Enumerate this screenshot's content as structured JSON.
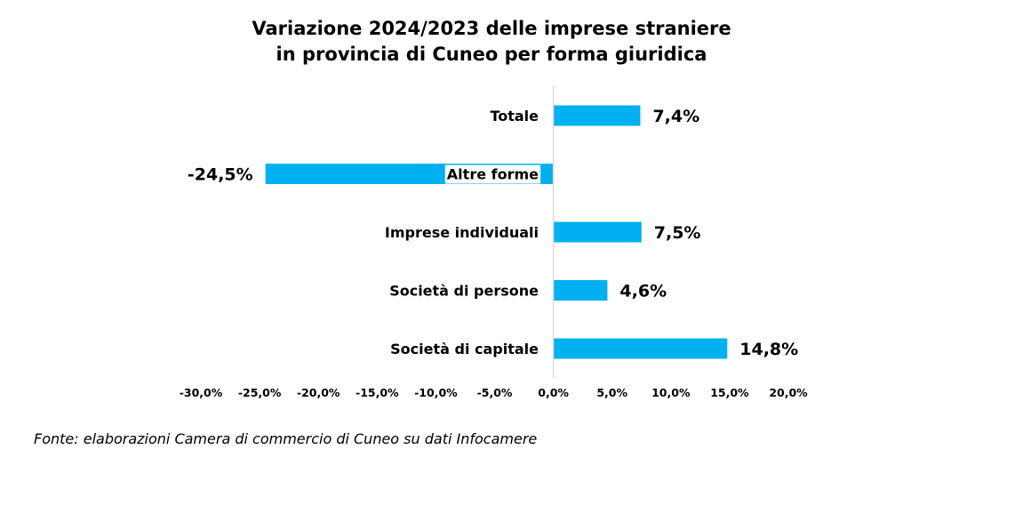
{
  "chart_data": {
    "type": "bar",
    "orientation": "horizontal",
    "title_lines": [
      "Variazione 2024/2023 delle imprese straniere",
      "in provincia di Cuneo per forma giuridica"
    ],
    "categories": [
      "Totale",
      "Altre forme",
      "Imprese individuali",
      "Società di persone",
      "Società di capitale"
    ],
    "values": [
      7.4,
      -24.5,
      7.5,
      4.6,
      14.8
    ],
    "value_labels": [
      "7,4%",
      "-24,5%",
      "7,5%",
      "4,6%",
      "14,8%"
    ],
    "xlim": [
      -30,
      20
    ],
    "x_ticks": [
      -30,
      -25,
      -20,
      -15,
      -10,
      -5,
      0,
      5,
      10,
      15,
      20
    ],
    "x_tick_labels": [
      "-30,0%",
      "-25,0%",
      "-20,0%",
      "-15,0%",
      "-10,0%",
      "-5,0%",
      "0,0%",
      "5,0%",
      "10,0%",
      "15,0%",
      "20,0%"
    ],
    "grid": false,
    "bar_color": "#00B0F0"
  },
  "source_note": "Fonte: elaborazioni Camera di commercio di Cuneo su dati Infocamere"
}
